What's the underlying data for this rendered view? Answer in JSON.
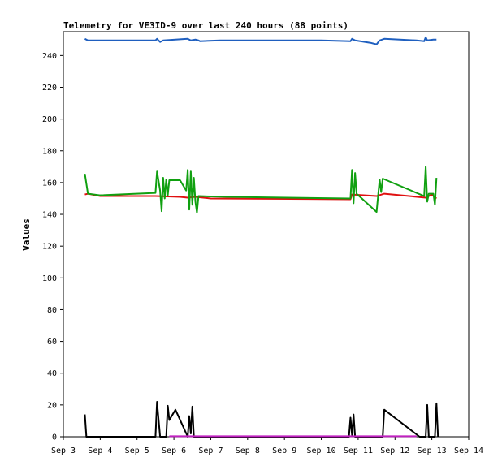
{
  "chart_data": {
    "type": "line",
    "title": "Telemetry for VE3ID-9 over last 240 hours (88 points)",
    "ylabel": "Values",
    "xlabel": "",
    "xlim": [
      "2024-09-03T00:00",
      "2024-09-14T00:00"
    ],
    "ylim": [
      0,
      255
    ],
    "x_ticks": [
      "Sep 3",
      "Sep 4",
      "Sep 5",
      "Sep 6",
      "Sep 7",
      "Sep 8",
      "Sep 9",
      "Sep 10",
      "Sep 11",
      "Sep 12",
      "Sep 13",
      "Sep 14"
    ],
    "y_ticks": [
      0,
      20,
      40,
      60,
      80,
      100,
      120,
      140,
      160,
      180,
      200,
      220,
      240
    ],
    "grid": false,
    "legend": "none",
    "series": [
      {
        "color": "#1f5fbf",
        "points": [
          [
            "2024-09-03T14:00",
            250.5
          ],
          [
            "2024-09-03T16:00",
            249.5
          ],
          [
            "2024-09-05T12:00",
            249.5
          ],
          [
            "2024-09-05T13:00",
            250.5
          ],
          [
            "2024-09-05T15:00",
            248.5
          ],
          [
            "2024-09-05T17:00",
            249.5
          ],
          [
            "2024-09-06T09:00",
            250.5
          ],
          [
            "2024-09-06T11:00",
            249.5
          ],
          [
            "2024-09-06T14:00",
            250.0
          ],
          [
            "2024-09-06T16:00",
            249.5
          ],
          [
            "2024-09-06T17:00",
            249.0
          ],
          [
            "2024-09-07T06:00",
            249.5
          ],
          [
            "2024-09-10T00:00",
            249.5
          ],
          [
            "2024-09-10T19:00",
            249.0
          ],
          [
            "2024-09-10T20:00",
            250.5
          ],
          [
            "2024-09-10T22:00",
            249.5
          ],
          [
            "2024-09-11T08:00",
            248.0
          ],
          [
            "2024-09-11T12:00",
            247.0
          ],
          [
            "2024-09-11T14:00",
            249.5
          ],
          [
            "2024-09-11T17:00",
            250.5
          ],
          [
            "2024-09-12T14:00",
            249.5
          ],
          [
            "2024-09-12T19:00",
            249.0
          ],
          [
            "2024-09-12T20:00",
            251.5
          ],
          [
            "2024-09-12T21:00",
            249.5
          ],
          [
            "2024-09-13T01:00",
            250.0
          ],
          [
            "2024-09-13T03:00",
            250.0
          ]
        ]
      },
      {
        "color": "#e01010",
        "points": [
          [
            "2024-09-03T14:00",
            152.5
          ],
          [
            "2024-09-03T16:00",
            153.0
          ],
          [
            "2024-09-04T00:00",
            151.5
          ],
          [
            "2024-09-05T12:00",
            151.5
          ],
          [
            "2024-09-06T04:00",
            151.0
          ],
          [
            "2024-09-06T09:00",
            150.5
          ],
          [
            "2024-09-06T14:00",
            151.0
          ],
          [
            "2024-09-07T00:00",
            150.0
          ],
          [
            "2024-09-10T19:00",
            149.5
          ],
          [
            "2024-09-10T20:00",
            152.5
          ],
          [
            "2024-09-11T12:00",
            151.5
          ],
          [
            "2024-09-11T17:00",
            153.0
          ],
          [
            "2024-09-12T20:00",
            150.5
          ],
          [
            "2024-09-13T00:00",
            152.5
          ],
          [
            "2024-09-13T03:00",
            150.0
          ]
        ]
      },
      {
        "color": "#10a010",
        "points": [
          [
            "2024-09-03T14:00",
            165.5
          ],
          [
            "2024-09-03T16:00",
            153.0
          ],
          [
            "2024-09-04T00:00",
            152.0
          ],
          [
            "2024-09-05T12:00",
            153.5
          ],
          [
            "2024-09-05T13:00",
            167.0
          ],
          [
            "2024-09-05T15:00",
            155.0
          ],
          [
            "2024-09-05T16:00",
            142.0
          ],
          [
            "2024-09-05T17:00",
            163.0
          ],
          [
            "2024-09-05T18:00",
            150.0
          ],
          [
            "2024-09-05T19:00",
            162.0
          ],
          [
            "2024-09-05T20:00",
            152.0
          ],
          [
            "2024-09-05T21:00",
            161.5
          ],
          [
            "2024-09-06T04:00",
            161.5
          ],
          [
            "2024-09-06T08:00",
            155.0
          ],
          [
            "2024-09-06T09:00",
            168.0
          ],
          [
            "2024-09-06T10:00",
            143.0
          ],
          [
            "2024-09-06T11:00",
            167.0
          ],
          [
            "2024-09-06T12:00",
            146.0
          ],
          [
            "2024-09-06T13:00",
            163.0
          ],
          [
            "2024-09-06T14:00",
            148.0
          ],
          [
            "2024-09-06T15:00",
            141.0
          ],
          [
            "2024-09-06T16:00",
            151.5
          ],
          [
            "2024-09-07T10:00",
            151.0
          ],
          [
            "2024-09-10T19:00",
            150.0
          ],
          [
            "2024-09-10T20:00",
            168.0
          ],
          [
            "2024-09-10T21:00",
            147.0
          ],
          [
            "2024-09-10T22:00",
            166.0
          ],
          [
            "2024-09-10T23:00",
            153.0
          ],
          [
            "2024-09-11T12:00",
            141.5
          ],
          [
            "2024-09-11T14:00",
            162.0
          ],
          [
            "2024-09-11T15:00",
            154.0
          ],
          [
            "2024-09-11T16:00",
            162.5
          ],
          [
            "2024-09-12T19:00",
            151.5
          ],
          [
            "2024-09-12T20:00",
            170.0
          ],
          [
            "2024-09-12T21:00",
            148.0
          ],
          [
            "2024-09-12T22:00",
            153.0
          ],
          [
            "2024-09-13T01:00",
            153.0
          ],
          [
            "2024-09-13T02:00",
            146.0
          ],
          [
            "2024-09-13T03:00",
            163.0
          ]
        ]
      },
      {
        "color": "#000000",
        "points": [
          [
            "2024-09-03T14:00",
            14.0
          ],
          [
            "2024-09-03T15:00",
            0.0
          ],
          [
            "2024-09-05T12:00",
            0.0
          ],
          [
            "2024-09-05T13:00",
            22.0
          ],
          [
            "2024-09-05T15:00",
            0.0
          ],
          [
            "2024-09-05T19:00",
            0.0
          ],
          [
            "2024-09-05T20:00",
            19.5
          ],
          [
            "2024-09-05T21:00",
            10.5
          ],
          [
            "2024-09-06T01:00",
            17.0
          ],
          [
            "2024-09-06T09:00",
            0.0
          ],
          [
            "2024-09-06T10:00",
            13.0
          ],
          [
            "2024-09-06T11:00",
            2.0
          ],
          [
            "2024-09-06T12:00",
            19.0
          ],
          [
            "2024-09-06T13:00",
            0.0
          ],
          [
            "2024-09-10T18:00",
            0.0
          ],
          [
            "2024-09-10T19:00",
            12.0
          ],
          [
            "2024-09-10T20:00",
            1.0
          ],
          [
            "2024-09-10T21:00",
            14.0
          ],
          [
            "2024-09-10T22:00",
            0.0
          ],
          [
            "2024-09-11T16:00",
            0.0
          ],
          [
            "2024-09-11T17:00",
            17.0
          ],
          [
            "2024-09-12T16:00",
            0.0
          ],
          [
            "2024-09-12T20:00",
            0.0
          ],
          [
            "2024-09-12T21:00",
            20.0
          ],
          [
            "2024-09-12T22:00",
            0.0
          ],
          [
            "2024-09-13T02:00",
            0.0
          ],
          [
            "2024-09-13T03:00",
            21.0
          ],
          [
            "2024-09-13T04:00",
            0.0
          ]
        ]
      },
      {
        "color": "#c020c0",
        "points": [
          [
            "2024-09-05T21:00",
            0.3
          ],
          [
            "2024-09-06T08:00",
            0.3
          ],
          [
            "2024-09-11T17:00",
            0.3
          ],
          [
            "2024-09-12T14:00",
            0.3
          ]
        ]
      }
    ]
  }
}
